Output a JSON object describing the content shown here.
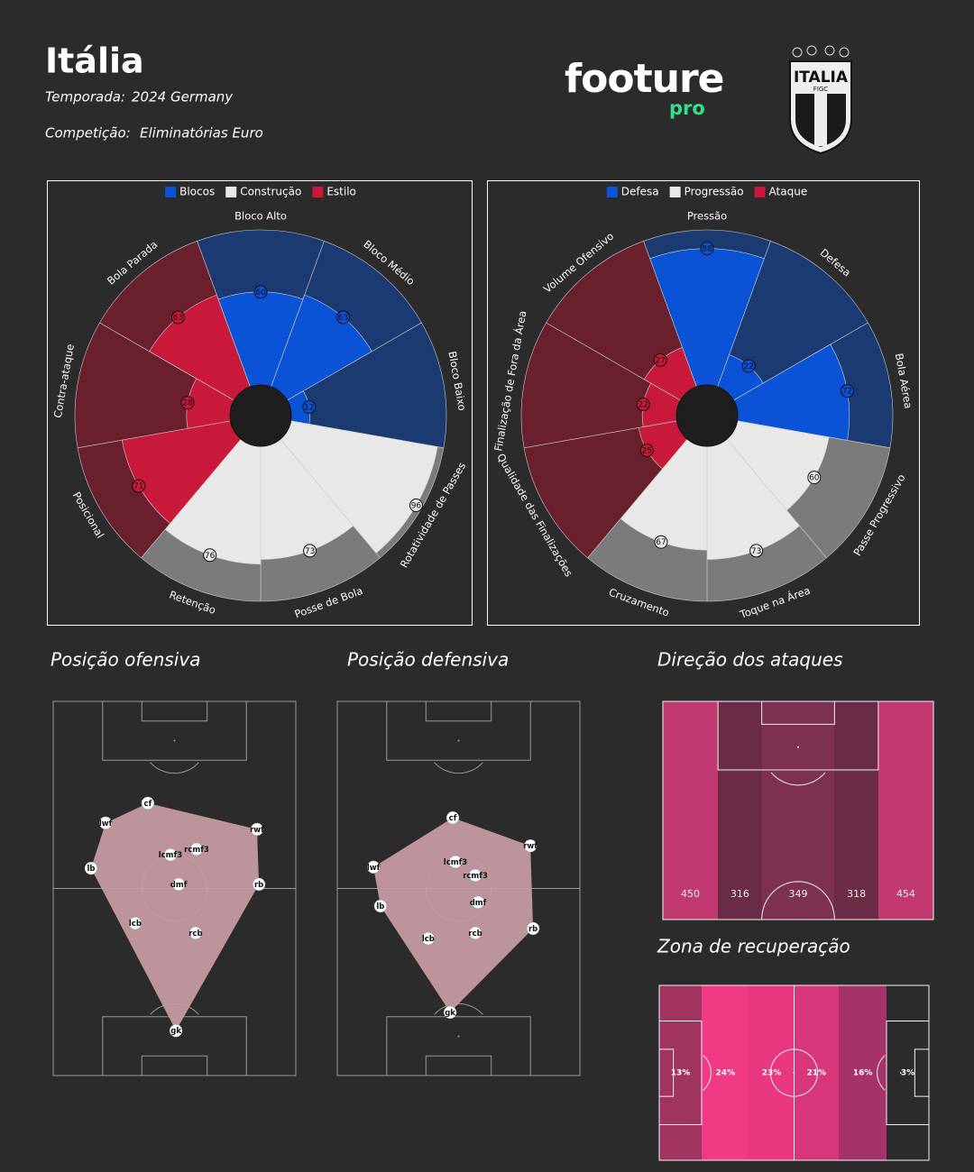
{
  "header": {
    "title": "Itália",
    "season_label": "Temporada:",
    "season": "2024 Germany",
    "competition_label": "Competição:",
    "competition": "Eliminatórias Euro",
    "logo": "footure",
    "logo_sub": "pro",
    "badge": "ITALIA",
    "badge_sub": "FIGC"
  },
  "chart_data": [
    {
      "type": "polar-bar",
      "series": [
        {
          "name": "Blocos",
          "color": "#0a52d6",
          "bg_color": "#1b3a72",
          "categories": [
            "Bloco Alto",
            "Bloco Médio",
            "Bloco Baixo"
          ],
          "values": [
            60,
            63,
            12
          ]
        },
        {
          "name": "Construção",
          "color": "#e8e8e8",
          "bg_color": "#7b7b7b",
          "categories": [
            "Rotatividade de Passes",
            "Posse de Bola",
            "Retenção"
          ],
          "values": [
            96,
            73,
            76
          ]
        },
        {
          "name": "Estilo",
          "color": "#c8193a",
          "bg_color": "#6a1f2d",
          "categories": [
            "Posicional",
            "Contra-ataque",
            "Bola Parada"
          ],
          "values": [
            71,
            28,
            63
          ]
        }
      ]
    },
    {
      "type": "polar-bar",
      "series": [
        {
          "name": "Defesa",
          "color": "#0a52d6",
          "bg_color": "#1b3a72",
          "categories": [
            "Pressão",
            "Defesa",
            "Bola Aérea"
          ],
          "values": [
            88,
            22,
            72
          ]
        },
        {
          "name": "Progressão",
          "color": "#e8e8e8",
          "bg_color": "#7b7b7b",
          "categories": [
            "Passe Progressivo",
            "Toque na Área",
            "Cruzamento"
          ],
          "values": [
            60,
            73,
            67
          ]
        },
        {
          "name": "Ataque",
          "color": "#c8193a",
          "bg_color": "#6a1f2d",
          "categories": [
            "Qualidade das Finalizações",
            "Finalização de Fora da Área",
            "Volume Ofensivo"
          ],
          "values": [
            25,
            22,
            27
          ]
        }
      ]
    },
    {
      "type": "pitch-positions",
      "title": "Posição ofensiva",
      "color": "#c69aa2",
      "labels": [
        "cf",
        "lwf",
        "rwf",
        "lb",
        "lcmf3",
        "rcmf3",
        "dmf",
        "rb",
        "lcb",
        "rcb",
        "gk"
      ],
      "x": [
        39.0,
        21.6,
        84.0,
        15.6,
        48.3,
        59.1,
        51.7,
        84.8,
        33.8,
        58.7,
        50.6
      ],
      "values": [
        27.2,
        32.5,
        34.2,
        44.6,
        41.0,
        39.5,
        48.9,
        48.9,
        59.3,
        61.9,
        88.0
      ]
    },
    {
      "type": "pitch-positions",
      "title": "Posição defensiva",
      "color": "#c69aa2",
      "labels": [
        "cf",
        "rwf",
        "lwf",
        "lcmf3",
        "rcmf3",
        "dmf",
        "lb",
        "rb",
        "lcb",
        "rcb",
        "gk"
      ],
      "x": [
        47.6,
        79.6,
        14.9,
        48.7,
        56.9,
        58.0,
        17.8,
        80.7,
        37.5,
        56.9,
        46.5
      ],
      "values": [
        31.1,
        38.6,
        44.3,
        42.9,
        46.5,
        53.7,
        54.7,
        60.7,
        63.4,
        61.9,
        83.1
      ]
    },
    {
      "type": "pitch-columns",
      "title": "Direção dos ataques",
      "values": [
        450,
        316,
        349,
        318,
        454
      ],
      "colors": [
        "#c0396f",
        "#6a2c44",
        "#7e3050",
        "#6a2c44",
        "#c2396f"
      ]
    },
    {
      "type": "pitch-columns",
      "title": "Zona de recuperação",
      "values": [
        13,
        24,
        23,
        21,
        16,
        3
      ],
      "value_labels": [
        "13%",
        "24%",
        "23%",
        "21%",
        "16%",
        "3%"
      ],
      "colors": [
        "#a0345f",
        "#f03a83",
        "#e93880",
        "#d8367a",
        "#a6326a",
        "#2b2b2b"
      ]
    }
  ]
}
